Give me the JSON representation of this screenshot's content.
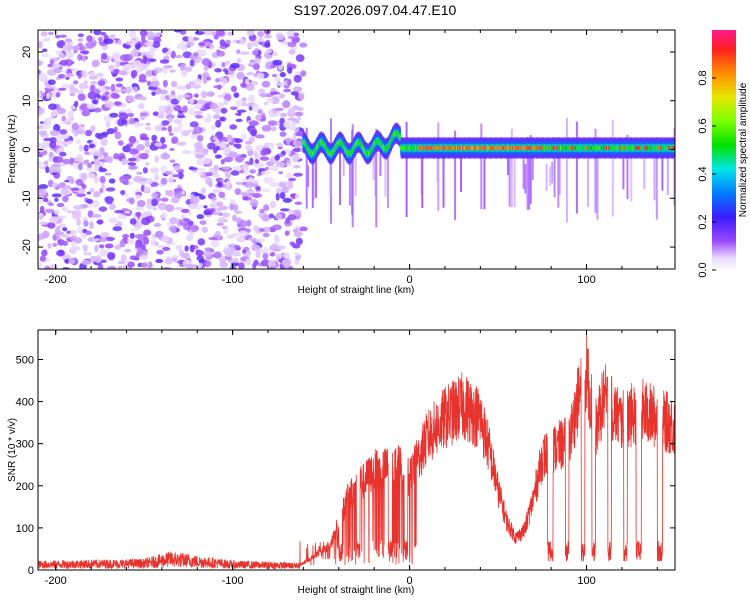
{
  "title": "S197.2026.097.04.47.E10",
  "chart_data": [
    {
      "type": "heatmap",
      "xlabel": "Height of straight line (km)",
      "ylabel": "Frequency (Hz)",
      "xlim": [
        -210,
        150
      ],
      "ylim": [
        -24.5,
        24.5
      ],
      "xticks": [
        -200,
        -100,
        0,
        100
      ],
      "yticks": [
        -20,
        -10,
        0,
        10,
        20
      ],
      "colorbar": {
        "label": "Normalized spectral amplitude",
        "range": [
          0,
          1
        ],
        "ticks": [
          "0.0",
          "0.2",
          "0.4",
          "0.6",
          "0.8"
        ],
        "tick_values": [
          0,
          0.2,
          0.4,
          0.6,
          0.8
        ]
      },
      "description_regions": [
        {
          "x_range": [
            -210,
            -60
          ],
          "kind": "noise",
          "amplitude_range": [
            0.02,
            0.15
          ]
        },
        {
          "x_range": [
            -60,
            150
          ],
          "kind": "carrier",
          "frequency_hz": 0.3,
          "amplitude_range": [
            0.3,
            0.95
          ]
        }
      ]
    },
    {
      "type": "line",
      "xlabel": "Height of straight line (km)",
      "ylabel": "SNR (10 * v/v)",
      "xlim": [
        -210,
        150
      ],
      "ylim": [
        0,
        570
      ],
      "xticks": [
        -200,
        -100,
        0,
        100
      ],
      "yticks": [
        0,
        100,
        200,
        300,
        400,
        500
      ],
      "color": "#e8322d",
      "series_envelope": {
        "x": [
          -210,
          -150,
          -135,
          -100,
          -62,
          -45,
          -35,
          -20,
          -5,
          0,
          10,
          20,
          30,
          40,
          45,
          50,
          55,
          60,
          65,
          70,
          75,
          80,
          90,
          95,
          100,
          105,
          110,
          120,
          130,
          140,
          150
        ],
        "y": [
          15,
          18,
          30,
          15,
          12,
          60,
          180,
          250,
          260,
          230,
          330,
          380,
          410,
          380,
          300,
          200,
          120,
          80,
          100,
          180,
          280,
          300,
          320,
          420,
          500,
          350,
          430,
          370,
          400,
          380,
          360
        ]
      }
    }
  ]
}
